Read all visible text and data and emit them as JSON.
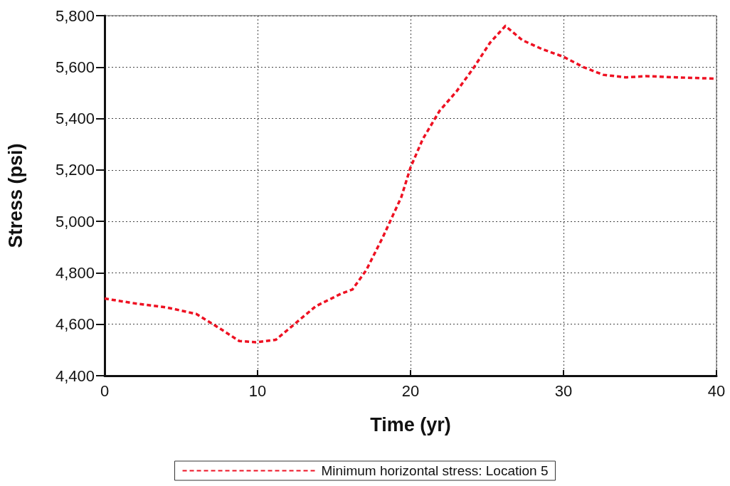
{
  "chart_data": {
    "type": "line",
    "xlabel": "Time (yr)",
    "ylabel": "Stress (psi)",
    "xlim": [
      0,
      40
    ],
    "xticks": [
      0,
      10,
      20,
      30,
      40
    ],
    "ylim": [
      4400,
      5800
    ],
    "yticks": [
      {
        "value": 4400,
        "label": "4,400"
      },
      {
        "value": 4600,
        "label": "4,600"
      },
      {
        "value": 4800,
        "label": "4,800"
      },
      {
        "value": 5000,
        "label": "5,000"
      },
      {
        "value": 5200,
        "label": "5,200"
      },
      {
        "value": 5400,
        "label": "5,400"
      },
      {
        "value": 5600,
        "label": "5,600"
      },
      {
        "value": 5800,
        "label": "5,800"
      }
    ],
    "grid": true,
    "legend": "bottom",
    "marker": "none",
    "line_style": "dashed",
    "series": [
      {
        "name": "Minimum horizontal stress: Location 5",
        "color": "#ee1122",
        "x": [
          0,
          2.1,
          4.1,
          6,
          7.5,
          8.8,
          9.9,
          11.2,
          12.4,
          13.8,
          15.5,
          16.2,
          17.1,
          18.2,
          19.4,
          20,
          20.8,
          21.9,
          23,
          24.1,
          25.2,
          26.2,
          27.3,
          28.6,
          30,
          31.3,
          32.6,
          34.1,
          35.4,
          37.4,
          40
        ],
        "values": [
          4700,
          4680,
          4665,
          4640,
          4585,
          4535,
          4530,
          4540,
          4600,
          4670,
          4720,
          4735,
          4810,
          4940,
          5095,
          5210,
          5320,
          5430,
          5505,
          5595,
          5695,
          5760,
          5705,
          5670,
          5640,
          5600,
          5570,
          5560,
          5565,
          5560,
          5555
        ]
      }
    ]
  }
}
